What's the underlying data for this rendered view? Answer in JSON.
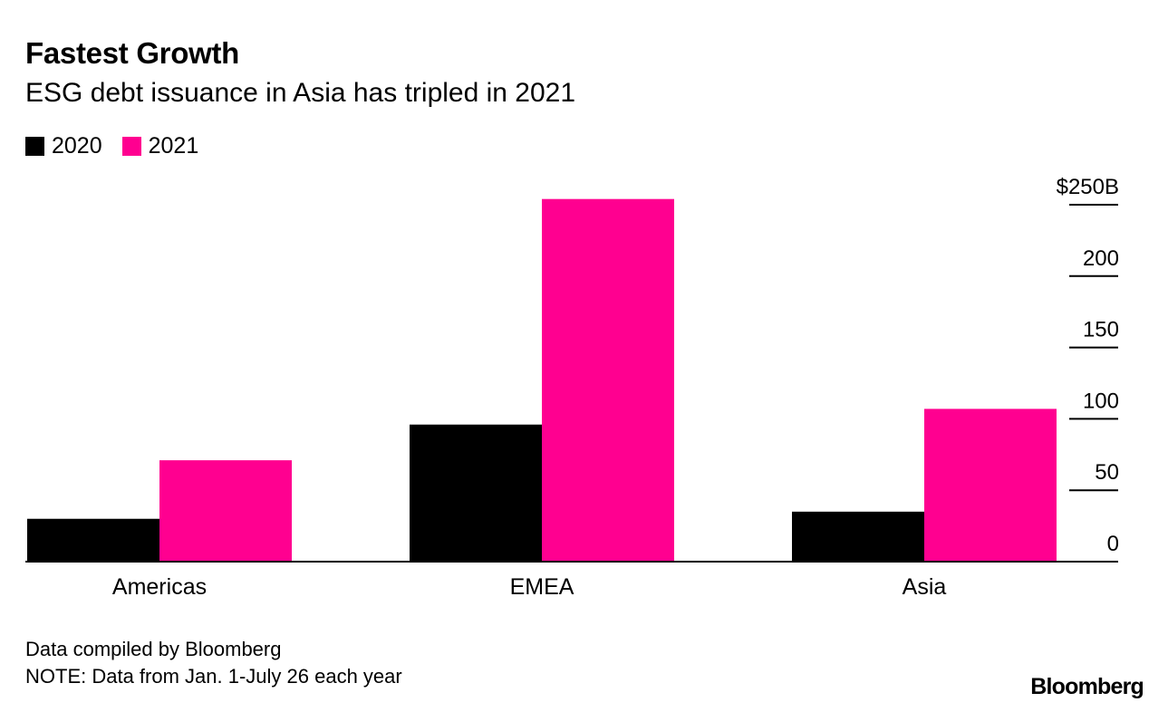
{
  "header": {
    "title": "Fastest Growth",
    "subtitle": "ESG debt issuance in Asia has tripled in 2021"
  },
  "legend": {
    "items": [
      {
        "label": "2020",
        "color": "#000000"
      },
      {
        "label": "2021",
        "color": "#ff0090"
      }
    ]
  },
  "chart_data": {
    "type": "bar",
    "categories": [
      "Americas",
      "EMEA",
      "Asia"
    ],
    "series": [
      {
        "name": "2020",
        "color": "#000000",
        "values": [
          30,
          96,
          35
        ]
      },
      {
        "name": "2021",
        "color": "#ff0090",
        "values": [
          71,
          254,
          107
        ]
      }
    ],
    "ylim": [
      0,
      250
    ],
    "yticks": [
      0,
      50,
      100,
      150,
      200,
      250
    ],
    "ytick_labels": [
      "0",
      "50",
      "100",
      "150",
      "200",
      "$250B"
    ],
    "yaxis_position": "right",
    "title": "Fastest Growth",
    "subtitle": "ESG debt issuance in Asia has tripled in 2021",
    "xlabel": "",
    "ylabel": ""
  },
  "footer": {
    "source": "Data compiled by Bloomberg",
    "note": "NOTE: Data from Jan. 1-July 26 each year",
    "brand": "Bloomberg"
  }
}
